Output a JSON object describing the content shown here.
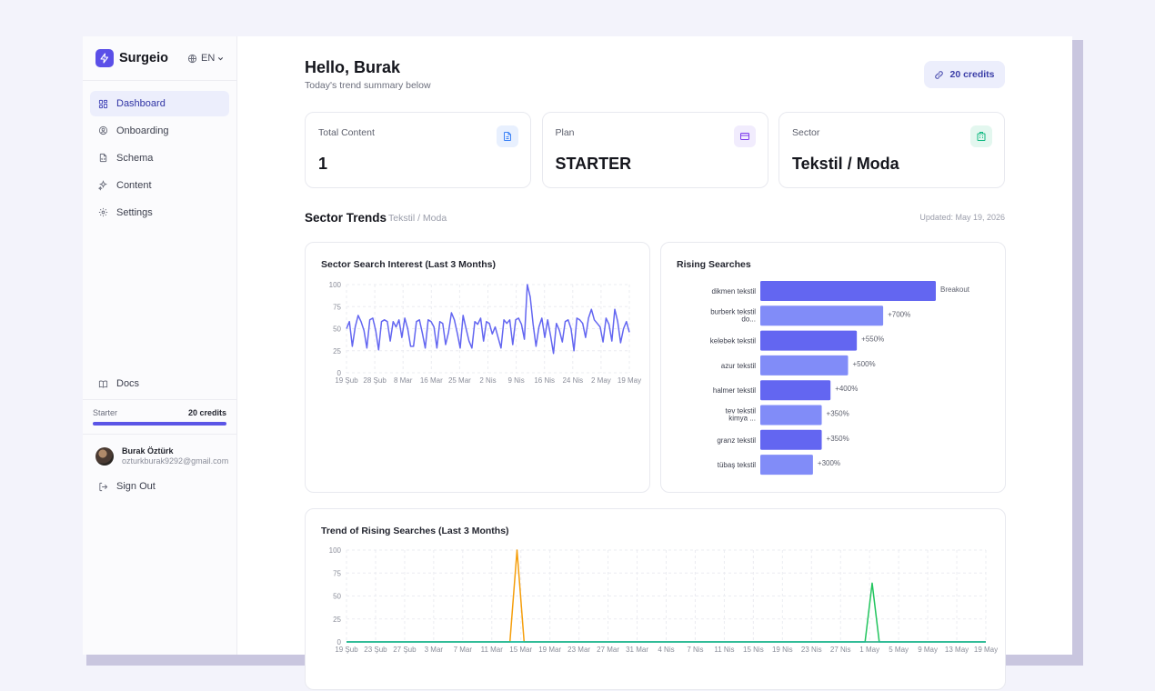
{
  "brand": {
    "name": "Surgeio",
    "accent": "#5b4fe8"
  },
  "language": {
    "value": "EN"
  },
  "sidebar": {
    "items": [
      {
        "label": "Dashboard",
        "icon": "grid-icon",
        "active": true
      },
      {
        "label": "Onboarding",
        "icon": "user-circle-icon",
        "active": false
      },
      {
        "label": "Schema",
        "icon": "file-code-icon",
        "active": false
      },
      {
        "label": "Content",
        "icon": "sparkles-icon",
        "active": false
      },
      {
        "label": "Settings",
        "icon": "gear-icon",
        "active": false
      }
    ],
    "docs_label": "Docs",
    "plan": {
      "name": "Starter",
      "credits": "20 credits",
      "progress": 1.0
    },
    "user": {
      "name": "Burak Öztürk",
      "email": "ozturkburak9292@gmail.com"
    },
    "signout_label": "Sign Out"
  },
  "header": {
    "greeting": "Hello, Burak",
    "subtitle": "Today's trend summary below",
    "credits_label": "20 credits"
  },
  "stats": [
    {
      "label": "Total Content",
      "value": "1",
      "icon": "document-icon",
      "color": "#3b82f6"
    },
    {
      "label": "Plan",
      "value": "STARTER",
      "icon": "credit-card-icon",
      "color": "#7c3aed"
    },
    {
      "label": "Sector",
      "value": "Tekstil / Moda",
      "icon": "building-icon",
      "color": "#10b981"
    }
  ],
  "trends": {
    "title": "Sector Trends",
    "sector": "Tekstil / Moda",
    "updated": "Updated: May 19, 2026"
  },
  "chart_data": [
    {
      "type": "line",
      "title": "Sector Search Interest (Last 3 Months)",
      "ylim": [
        0,
        100
      ],
      "yticks": [
        0,
        25,
        50,
        75,
        100
      ],
      "x_tick_labels": [
        "19 Şub",
        "28 Şub",
        "8 Mar",
        "16 Mar",
        "25 Mar",
        "2 Nis",
        "9 Nis",
        "16 Nis",
        "24 Nis",
        "2 May",
        "19 May"
      ],
      "grid": true,
      "series": [
        {
          "color": "#6366f1",
          "values": [
            50,
            58,
            30,
            52,
            65,
            58,
            48,
            28,
            60,
            62,
            48,
            26,
            58,
            60,
            58,
            36,
            58,
            52,
            60,
            40,
            62,
            50,
            30,
            30,
            58,
            60,
            45,
            28,
            60,
            58,
            52,
            28,
            58,
            56,
            32,
            46,
            68,
            60,
            45,
            28,
            65,
            50,
            36,
            28,
            58,
            55,
            62,
            36,
            58,
            56,
            44,
            52,
            40,
            28,
            60,
            56,
            60,
            32,
            60,
            62,
            55,
            38,
            100,
            86,
            55,
            30,
            52,
            62,
            40,
            60,
            42,
            22,
            56,
            48,
            35,
            58,
            60,
            50,
            25,
            62,
            60,
            56,
            40,
            62,
            72,
            60,
            56,
            52,
            35,
            62,
            55,
            36,
            72,
            58,
            34,
            50,
            58,
            46
          ]
        }
      ]
    },
    {
      "type": "bar",
      "title": "Rising Searches",
      "orientation": "horizontal",
      "categories": [
        "dikmen tekstil",
        "burberk tekstil do...",
        "kelebek tekstil",
        "azur tekstil",
        "halmer tekstil",
        "tev tekstil kimya ...",
        "granz tekstil",
        "tübaş tekstil"
      ],
      "values": [
        1000,
        700,
        550,
        500,
        400,
        350,
        350,
        300
      ],
      "value_labels": [
        "Breakout",
        "+700%",
        "+550%",
        "+500%",
        "+400%",
        "+350%",
        "+350%",
        "+300%"
      ],
      "colors": [
        "#6366f1",
        "#818cf8",
        "#6366f1",
        "#818cf8",
        "#6366f1",
        "#818cf8",
        "#6366f1",
        "#818cf8"
      ]
    },
    {
      "type": "line",
      "title": "Trend of Rising Searches (Last 3 Months)",
      "ylim": [
        0,
        100
      ],
      "yticks": [
        0,
        25,
        50,
        75,
        100
      ],
      "x_tick_labels": [
        "19 Şub",
        "23 Şub",
        "27 Şub",
        "3 Mar",
        "7 Mar",
        "11 Mar",
        "15 Mar",
        "19 Mar",
        "23 Mar",
        "27 Mar",
        "31 Mar",
        "4 Nis",
        "7 Nis",
        "11 Nis",
        "15 Nis",
        "19 Nis",
        "23 Nis",
        "27 Nis",
        "1 May",
        "5 May",
        "9 May",
        "13 May",
        "19 May"
      ],
      "grid": true,
      "series": [
        {
          "color": "#f59e0b",
          "values": [
            0,
            0,
            0,
            0,
            0,
            0,
            0,
            0,
            0,
            0,
            0,
            0,
            0,
            0,
            0,
            0,
            0,
            0,
            0,
            0,
            0,
            0,
            0,
            0,
            100,
            0,
            0,
            0,
            0,
            0,
            0,
            0,
            0,
            0,
            0,
            0,
            0,
            0,
            0,
            0,
            0,
            0,
            0,
            0,
            0,
            0,
            0,
            0,
            0,
            0,
            0,
            0,
            0,
            0,
            0,
            0,
            0,
            0,
            0,
            0,
            0,
            0,
            0,
            0,
            0,
            0,
            0,
            0,
            0,
            0,
            0,
            0,
            0,
            0,
            0,
            0,
            0,
            0,
            0,
            0,
            0,
            0,
            0,
            0,
            0,
            0,
            0,
            0,
            0,
            0,
            0
          ]
        },
        {
          "color": "#22c55e",
          "values": [
            0,
            0,
            0,
            0,
            0,
            0,
            0,
            0,
            0,
            0,
            0,
            0,
            0,
            0,
            0,
            0,
            0,
            0,
            0,
            0,
            0,
            0,
            0,
            0,
            0,
            0,
            0,
            0,
            0,
            0,
            0,
            0,
            0,
            0,
            0,
            0,
            0,
            0,
            0,
            0,
            0,
            0,
            0,
            0,
            0,
            0,
            0,
            0,
            0,
            0,
            0,
            0,
            0,
            0,
            0,
            0,
            0,
            0,
            0,
            0,
            0,
            0,
            0,
            0,
            0,
            0,
            0,
            0,
            0,
            0,
            0,
            0,
            0,
            0,
            64,
            0,
            0,
            0,
            0,
            0,
            0,
            0,
            0,
            0,
            0,
            0,
            0,
            0,
            0,
            0,
            0
          ]
        },
        {
          "color": "#14b8a6",
          "values": [
            0,
            0,
            0,
            0,
            0,
            0,
            0,
            0,
            0,
            0,
            0,
            0,
            0,
            0,
            0,
            0,
            0,
            0,
            0,
            0,
            0,
            0,
            0,
            0,
            0,
            0,
            0,
            0,
            0,
            0,
            0,
            0,
            0,
            0,
            0,
            0,
            0,
            0,
            0,
            0,
            0,
            0,
            0,
            0,
            0,
            0,
            0,
            0,
            0,
            0,
            0,
            0,
            0,
            0,
            0,
            0,
            0,
            0,
            0,
            0,
            0,
            0,
            0,
            0,
            0,
            0,
            0,
            0,
            0,
            0,
            0,
            0,
            0,
            0,
            0,
            0,
            0,
            0,
            0,
            0,
            0,
            0,
            0,
            0,
            0,
            0,
            0,
            0,
            0,
            0,
            0
          ]
        }
      ]
    }
  ]
}
